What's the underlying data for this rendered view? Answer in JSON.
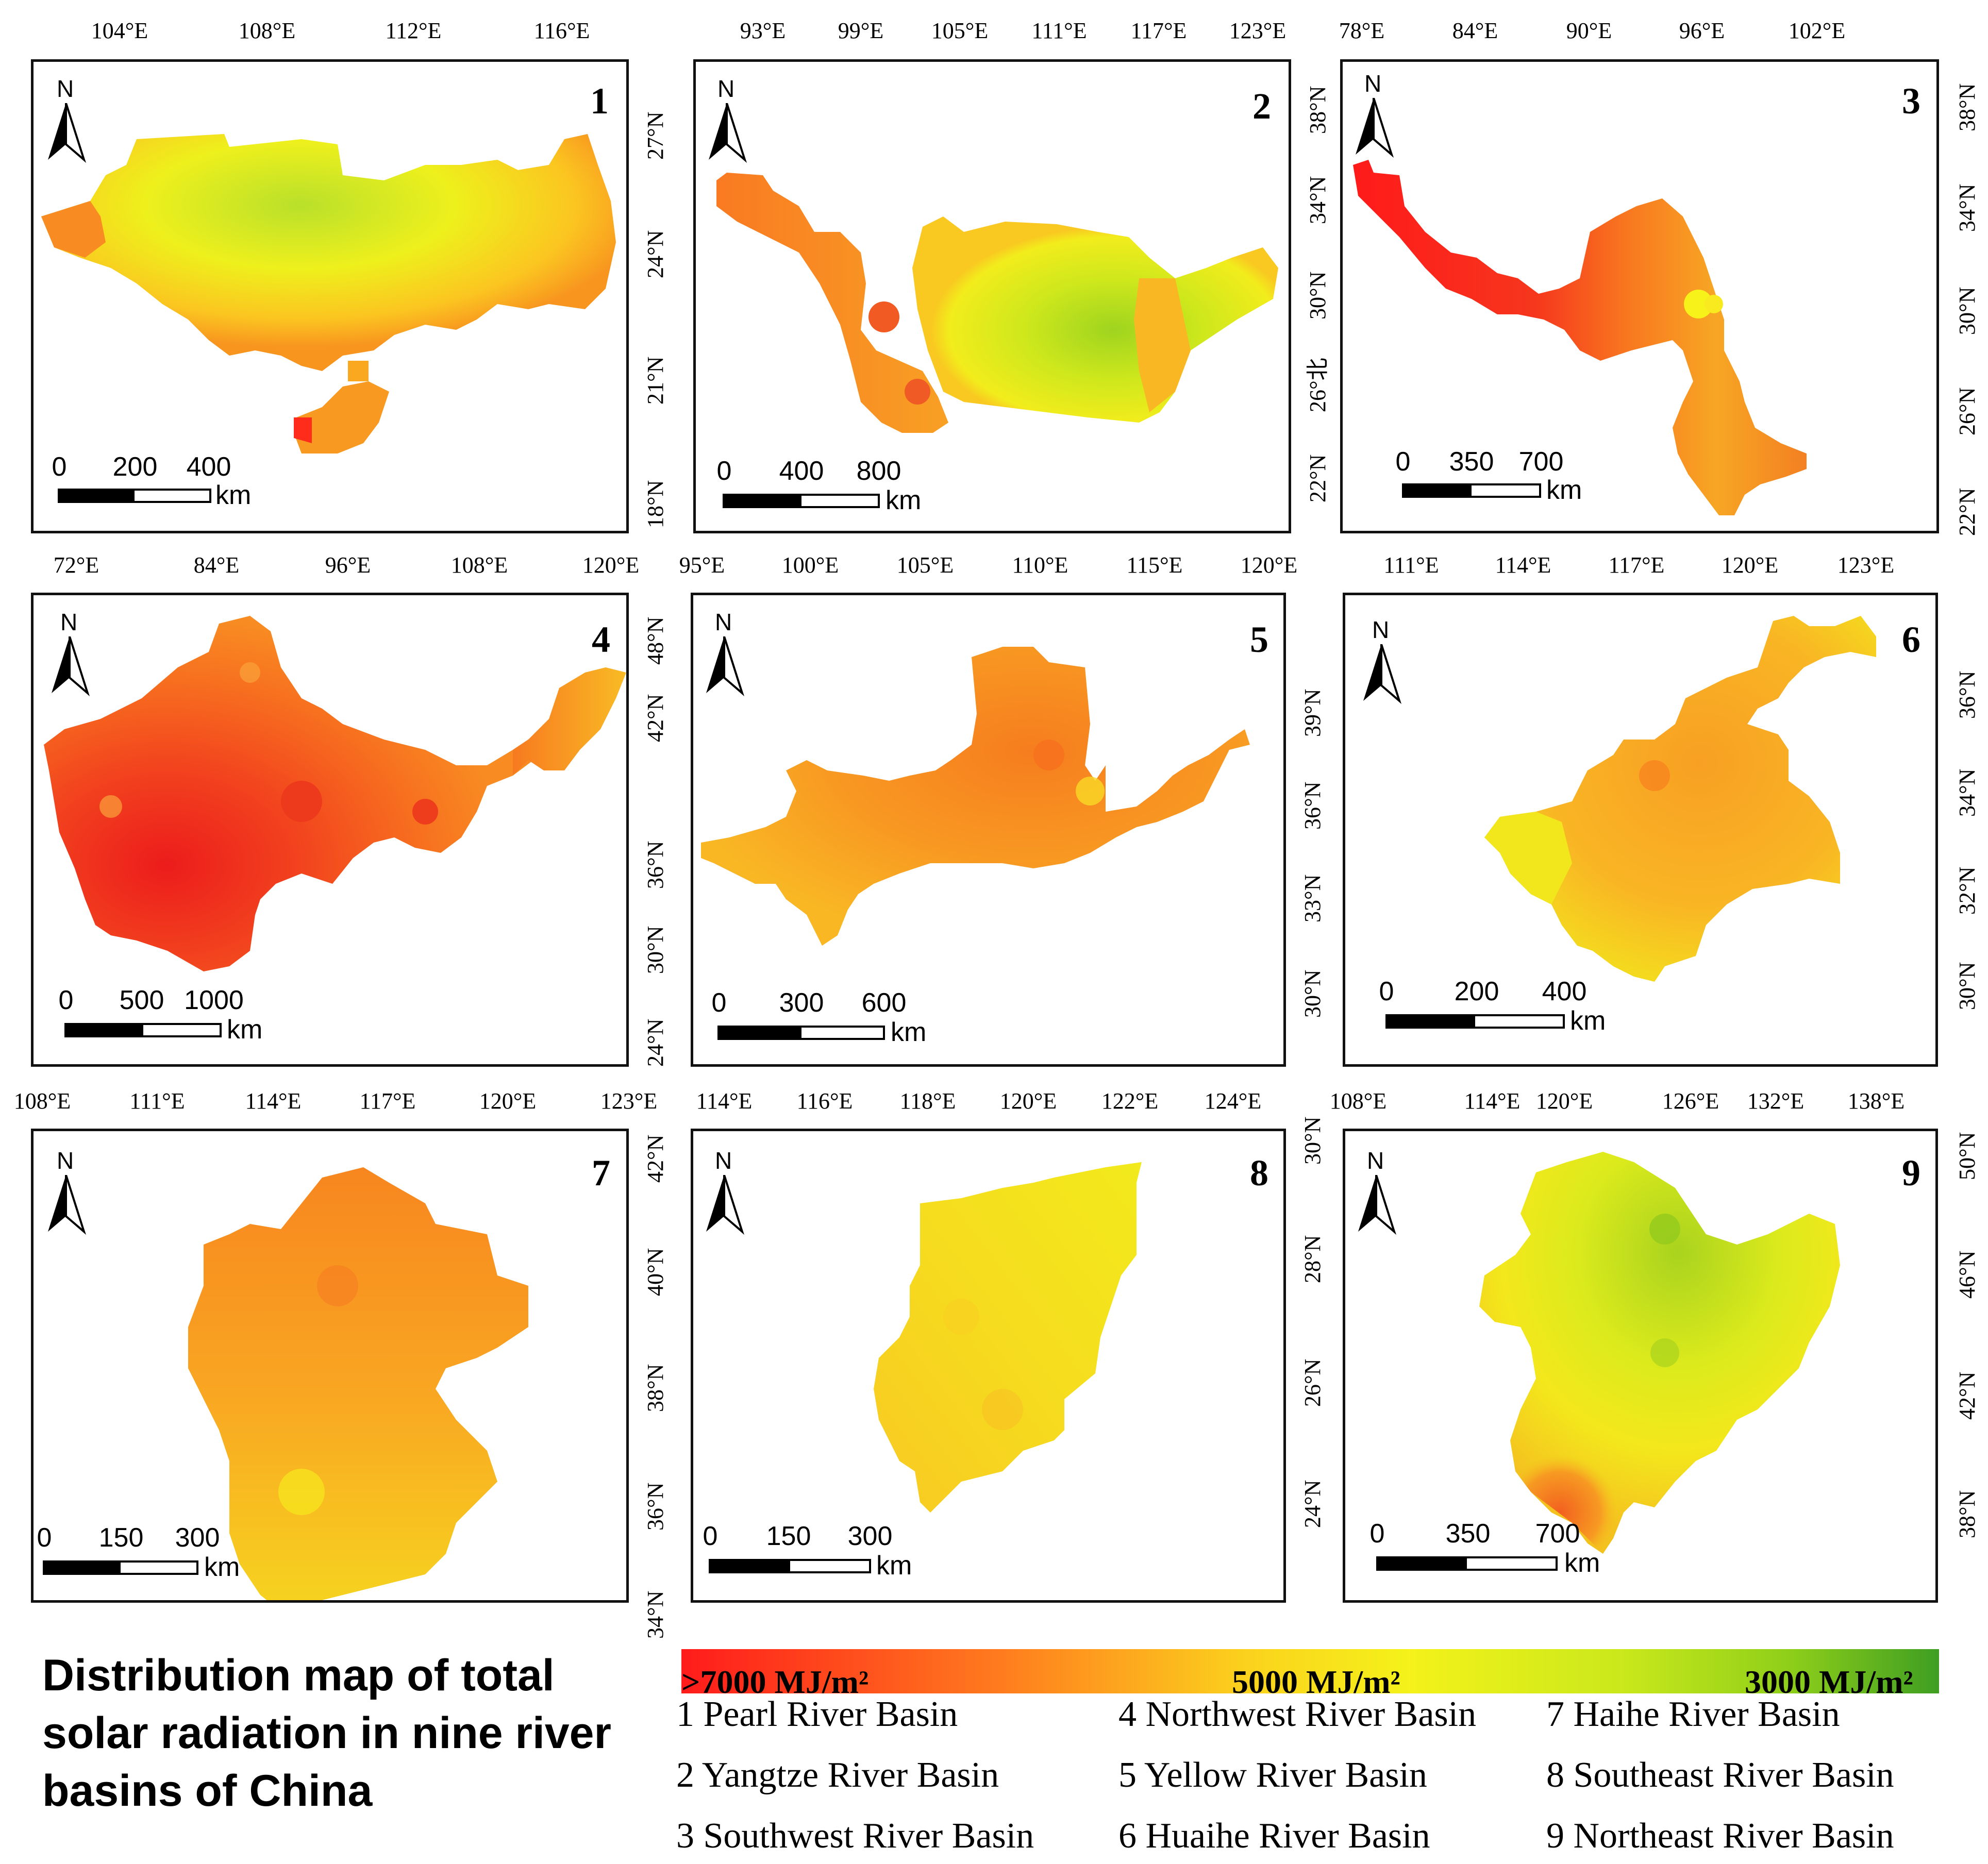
{
  "title_lines": [
    "Distribution map of total",
    "solar radiation in nine river",
    "basins of China"
  ],
  "colorbar": {
    "labels": [
      ">7000 MJ/m²",
      "5000 MJ/m²",
      "3000 MJ/m²"
    ],
    "colors": [
      "#ff1b1b",
      "#ff7a1e",
      "#fbd21d",
      "#f4f21a",
      "#c9e81b",
      "#8fcf1a",
      "#3f9e22"
    ]
  },
  "legend": [
    {
      "num": "1",
      "name": "Pearl River Basin"
    },
    {
      "num": "2",
      "name": "Yangtze River Basin"
    },
    {
      "num": "3",
      "name": "Southwest River Basin"
    },
    {
      "num": "4",
      "name": "Northwest River Basin"
    },
    {
      "num": "5",
      "name": "Yellow River Basin"
    },
    {
      "num": "6",
      "name": "Huaihe River Basin"
    },
    {
      "num": "7",
      "name": "Haihe River Basin"
    },
    {
      "num": "8",
      "name": "Southeast River Basin"
    },
    {
      "num": "9",
      "name": "Northeast River Basin"
    }
  ],
  "north_label": "N",
  "scale_unit": "km",
  "panels": [
    {
      "num": "1",
      "lon_ticks": [
        "104°E",
        "108°E",
        "112°E",
        "116°E"
      ],
      "lat_ticks": [
        "27°N",
        "24°N",
        "21°N",
        "18°N"
      ],
      "scale": [
        "0",
        "200",
        "400"
      ]
    },
    {
      "num": "2",
      "lon_ticks": [
        "93°E",
        "99°E",
        "105°E",
        "111°E",
        "117°E",
        "123°E"
      ],
      "lat_ticks": [
        "38°N",
        "34°N",
        "30°N",
        "26°北",
        "22°N"
      ],
      "scale": [
        "0",
        "400",
        "800"
      ]
    },
    {
      "num": "3",
      "lon_ticks": [
        "78°E",
        "84°E",
        "90°E",
        "96°E",
        "102°E"
      ],
      "lat_ticks": [
        "38°N",
        "34°N",
        "30°N",
        "26°N",
        "22°N"
      ],
      "scale": [
        "0",
        "350",
        "700"
      ]
    },
    {
      "num": "4",
      "lon_ticks": [
        "72°E",
        "84°E",
        "96°E",
        "108°E",
        "120°E"
      ],
      "lat_ticks": [
        "48°N",
        "42°N",
        "36°N",
        "30°N",
        "24°N"
      ],
      "scale": [
        "0",
        "500",
        "1000"
      ]
    },
    {
      "num": "5",
      "lon_ticks": [
        "95°E",
        "100°E",
        "105°E",
        "110°E",
        "115°E",
        "120°E"
      ],
      "lat_ticks": [
        "39°N",
        "36°N",
        "33°N",
        "30°N"
      ],
      "scale": [
        "0",
        "300",
        "600"
      ]
    },
    {
      "num": "6",
      "lon_ticks": [
        "111°E",
        "114°E",
        "117°E",
        "120°E",
        "123°E"
      ],
      "lat_ticks": [
        "36°N",
        "34°N",
        "32°N",
        "30°N"
      ],
      "scale": [
        "0",
        "200",
        "400"
      ]
    },
    {
      "num": "7",
      "lon_ticks": [
        "108°E",
        "111°E",
        "114°E",
        "117°E",
        "120°E",
        "123°E"
      ],
      "lat_ticks": [
        "42°N",
        "40°N",
        "38°N",
        "36°N",
        "34°N"
      ],
      "scale": [
        "0",
        "150",
        "300"
      ]
    },
    {
      "num": "8",
      "lon_ticks": [
        "114°E",
        "116°E",
        "118°E",
        "120°E",
        "122°E",
        "124°E"
      ],
      "lat_ticks": [
        "30°N",
        "28°N",
        "26°N",
        "24°N"
      ],
      "scale": [
        "0",
        "150",
        "300"
      ]
    },
    {
      "num": "9",
      "lon_ticks": [
        "108°E",
        "114°E",
        "120°E",
        "126°E",
        "132°E",
        "138°E"
      ],
      "lat_ticks": [
        "50°N",
        "46°N",
        "42°N",
        "38°N"
      ],
      "scale": [
        "0",
        "350",
        "700"
      ]
    }
  ]
}
